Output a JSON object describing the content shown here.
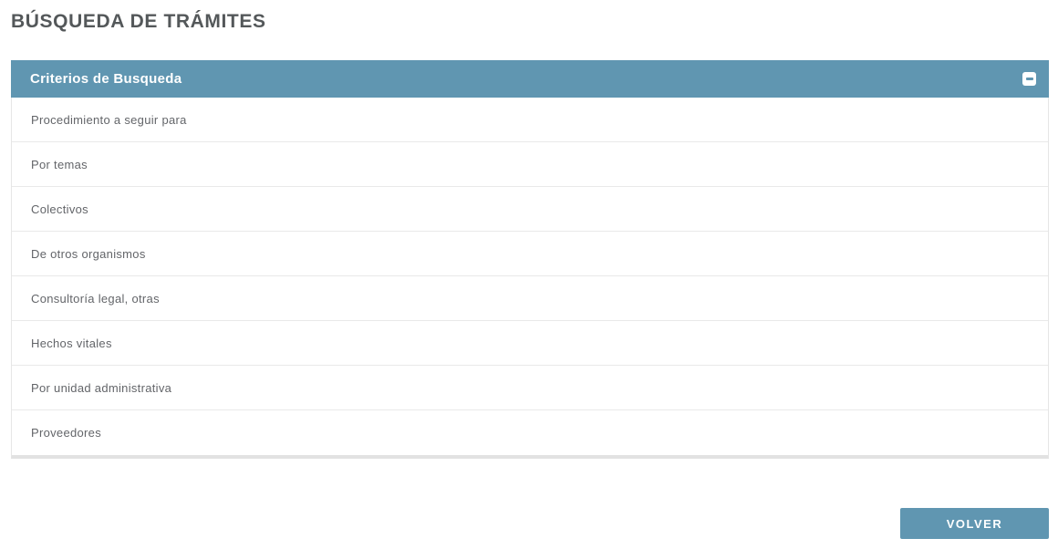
{
  "page": {
    "title": "BÚSQUEDA DE TRÁMITES"
  },
  "panel": {
    "header": "Criterios de Busqueda",
    "collapse_icon": "minus-square-icon",
    "items": [
      {
        "label": "Procedimiento a seguir para"
      },
      {
        "label": "Por temas"
      },
      {
        "label": "Colectivos"
      },
      {
        "label": "De otros organismos"
      },
      {
        "label": "Consultoría legal, otras"
      },
      {
        "label": "Hechos vitales"
      },
      {
        "label": "Por unidad administrativa"
      },
      {
        "label": "Proveedores"
      }
    ]
  },
  "footer": {
    "volver_label": "VOLVER"
  },
  "colors": {
    "accent": "#6096b1",
    "title_text": "#54585a",
    "row_text": "#636569",
    "row_border": "#e9e9e9",
    "panel_border": "#e6e6e6"
  }
}
